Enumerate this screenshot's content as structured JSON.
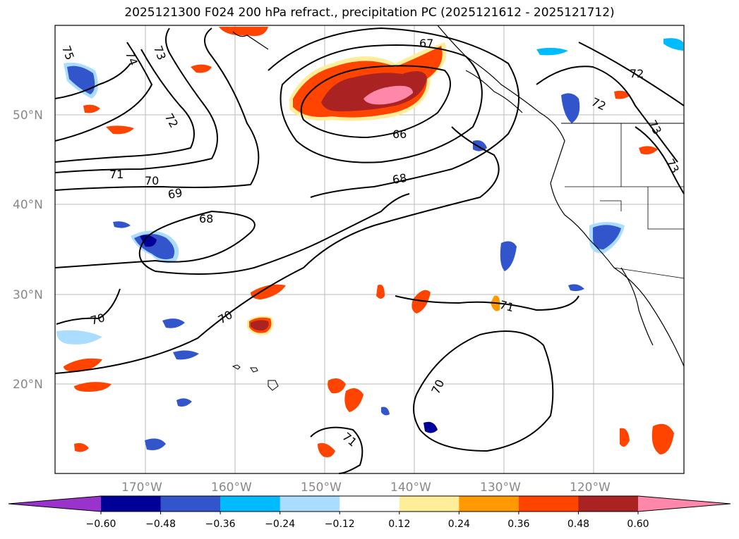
{
  "title": "2025121300 F024 200 hPa refract., precipitation PC (2025121612 - 2025121712)",
  "lat_labels": [
    "50°N",
    "40°N",
    "30°N",
    "20°N"
  ],
  "lon_labels": [
    "170°W",
    "160°W",
    "150°W",
    "140°W",
    "130°W",
    "120°W"
  ],
  "contour_labels": [
    "75",
    "74",
    "73",
    "72",
    "71",
    "70",
    "69",
    "68",
    "67",
    "66",
    "68",
    "72",
    "72",
    "73",
    "73",
    "70",
    "71",
    "70",
    "71"
  ],
  "colorbar": {
    "tick_labels": [
      "−0.60",
      "−0.48",
      "−0.36",
      "−0.24",
      "−0.12",
      "0.12",
      "0.24",
      "0.36",
      "0.48",
      "0.60"
    ],
    "colors": [
      "#9933cc",
      "#000099",
      "#3355cc",
      "#00bbff",
      "#aaddff",
      "#ffffff",
      "#ffee99",
      "#ff9900",
      "#ff4400",
      "#aa2222",
      "#ff88aa"
    ]
  }
}
